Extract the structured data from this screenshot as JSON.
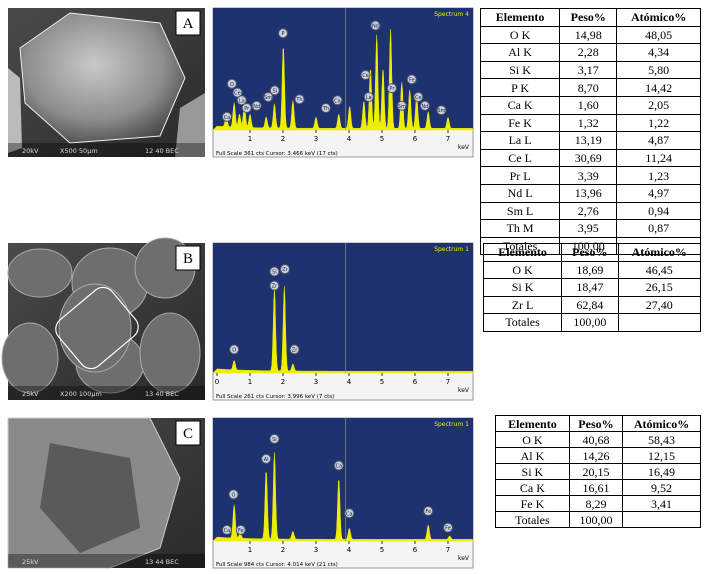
{
  "panels": [
    {
      "label": "A",
      "sem": {
        "scale_text": "X500  50µm",
        "info_text": "12 40 BEC",
        "kv_text": "20kV"
      },
      "spectrum": {
        "title": "Spectrum 4",
        "xticks": [
          "1",
          "2",
          "3",
          "4",
          "5",
          "6",
          "7"
        ],
        "unit": "keV",
        "footer": "Full Scale 361 cts  Cursor: 3.466 keV (17 cts)",
        "peak_labels": [
          "Ca",
          "O",
          "Ce",
          "La",
          "Pr",
          "Nd",
          "Sm",
          "Si",
          "P",
          "Th",
          "Th",
          "Ca",
          "Ce",
          "La",
          "Nd",
          "Pr",
          "Sm",
          "Fe",
          "Ce",
          "Nd",
          "Sm"
        ]
      },
      "table": {
        "header": [
          "Elemento",
          "Peso%",
          "Atómico%"
        ],
        "rows": [
          [
            "O K",
            "14,98",
            "48,05"
          ],
          [
            "Al K",
            "2,28",
            "4,34"
          ],
          [
            "Si K",
            "3,17",
            "5,80"
          ],
          [
            "P K",
            "8,70",
            "14,42"
          ],
          [
            "Ca K",
            "1,60",
            "2,05"
          ],
          [
            "Fe K",
            "1,32",
            "1,22"
          ],
          [
            "La L",
            "13,19",
            "4,87"
          ],
          [
            "Ce L",
            "30,69",
            "11,24"
          ],
          [
            "Pr L",
            "3,39",
            "1,23"
          ],
          [
            "Nd L",
            "13,96",
            "4,97"
          ],
          [
            "Sm L",
            "2,76",
            "0,94"
          ],
          [
            "Th M",
            "3,95",
            "0,87"
          ],
          [
            "Totales",
            "100,00",
            ""
          ]
        ]
      }
    },
    {
      "label": "B",
      "sem": {
        "scale_text": "X200  100µm",
        "info_text": "13 40 BEC",
        "kv_text": "25kV"
      },
      "spectrum": {
        "title": "Spectrum 1",
        "xticks": [
          "0",
          "1",
          "2",
          "3",
          "4",
          "5",
          "6",
          "7"
        ],
        "unit": "keV",
        "footer": "Full Scale 261 cts  Cursor: 3.996 keV (7 cts)",
        "peak_labels": [
          "O",
          "Si",
          "Zr",
          "Zr",
          "Zr"
        ]
      },
      "table": {
        "header": [
          "Elemento",
          "Peso%",
          "Atómico%"
        ],
        "rows": [
          [
            "O K",
            "18,69",
            "46,45"
          ],
          [
            "Si K",
            "18,47",
            "26,15"
          ],
          [
            "Zr L",
            "62,84",
            "27,40"
          ],
          [
            "Totales",
            "100,00",
            ""
          ]
        ]
      }
    },
    {
      "label": "C",
      "sem": {
        "scale_text": "",
        "info_text": "13 44 BEC",
        "kv_text": "25kV"
      },
      "spectrum": {
        "title": "Spectrum 1",
        "xticks": [
          "1",
          "2",
          "3",
          "4",
          "5",
          "6",
          "7"
        ],
        "unit": "keV",
        "footer": "Full Scale 984 cts  Cursor: 4.014 keV (21 cts)",
        "peak_labels": [
          "O",
          "Ca",
          "Fe",
          "Al",
          "Si",
          "Ca",
          "Ca",
          "Fe",
          "Fe"
        ]
      },
      "table": {
        "header": [
          "Elemento",
          "Peso%",
          "Atómico%"
        ],
        "rows": [
          [
            "O K",
            "40,68",
            "58,43"
          ],
          [
            "Al K",
            "14,26",
            "12,15"
          ],
          [
            "Si K",
            "20,15",
            "16,49"
          ],
          [
            "Ca K",
            "16,61",
            "9,52"
          ],
          [
            "Fe K",
            "8,29",
            "3,41"
          ],
          [
            "Totales",
            "100,00",
            ""
          ]
        ]
      }
    }
  ]
}
